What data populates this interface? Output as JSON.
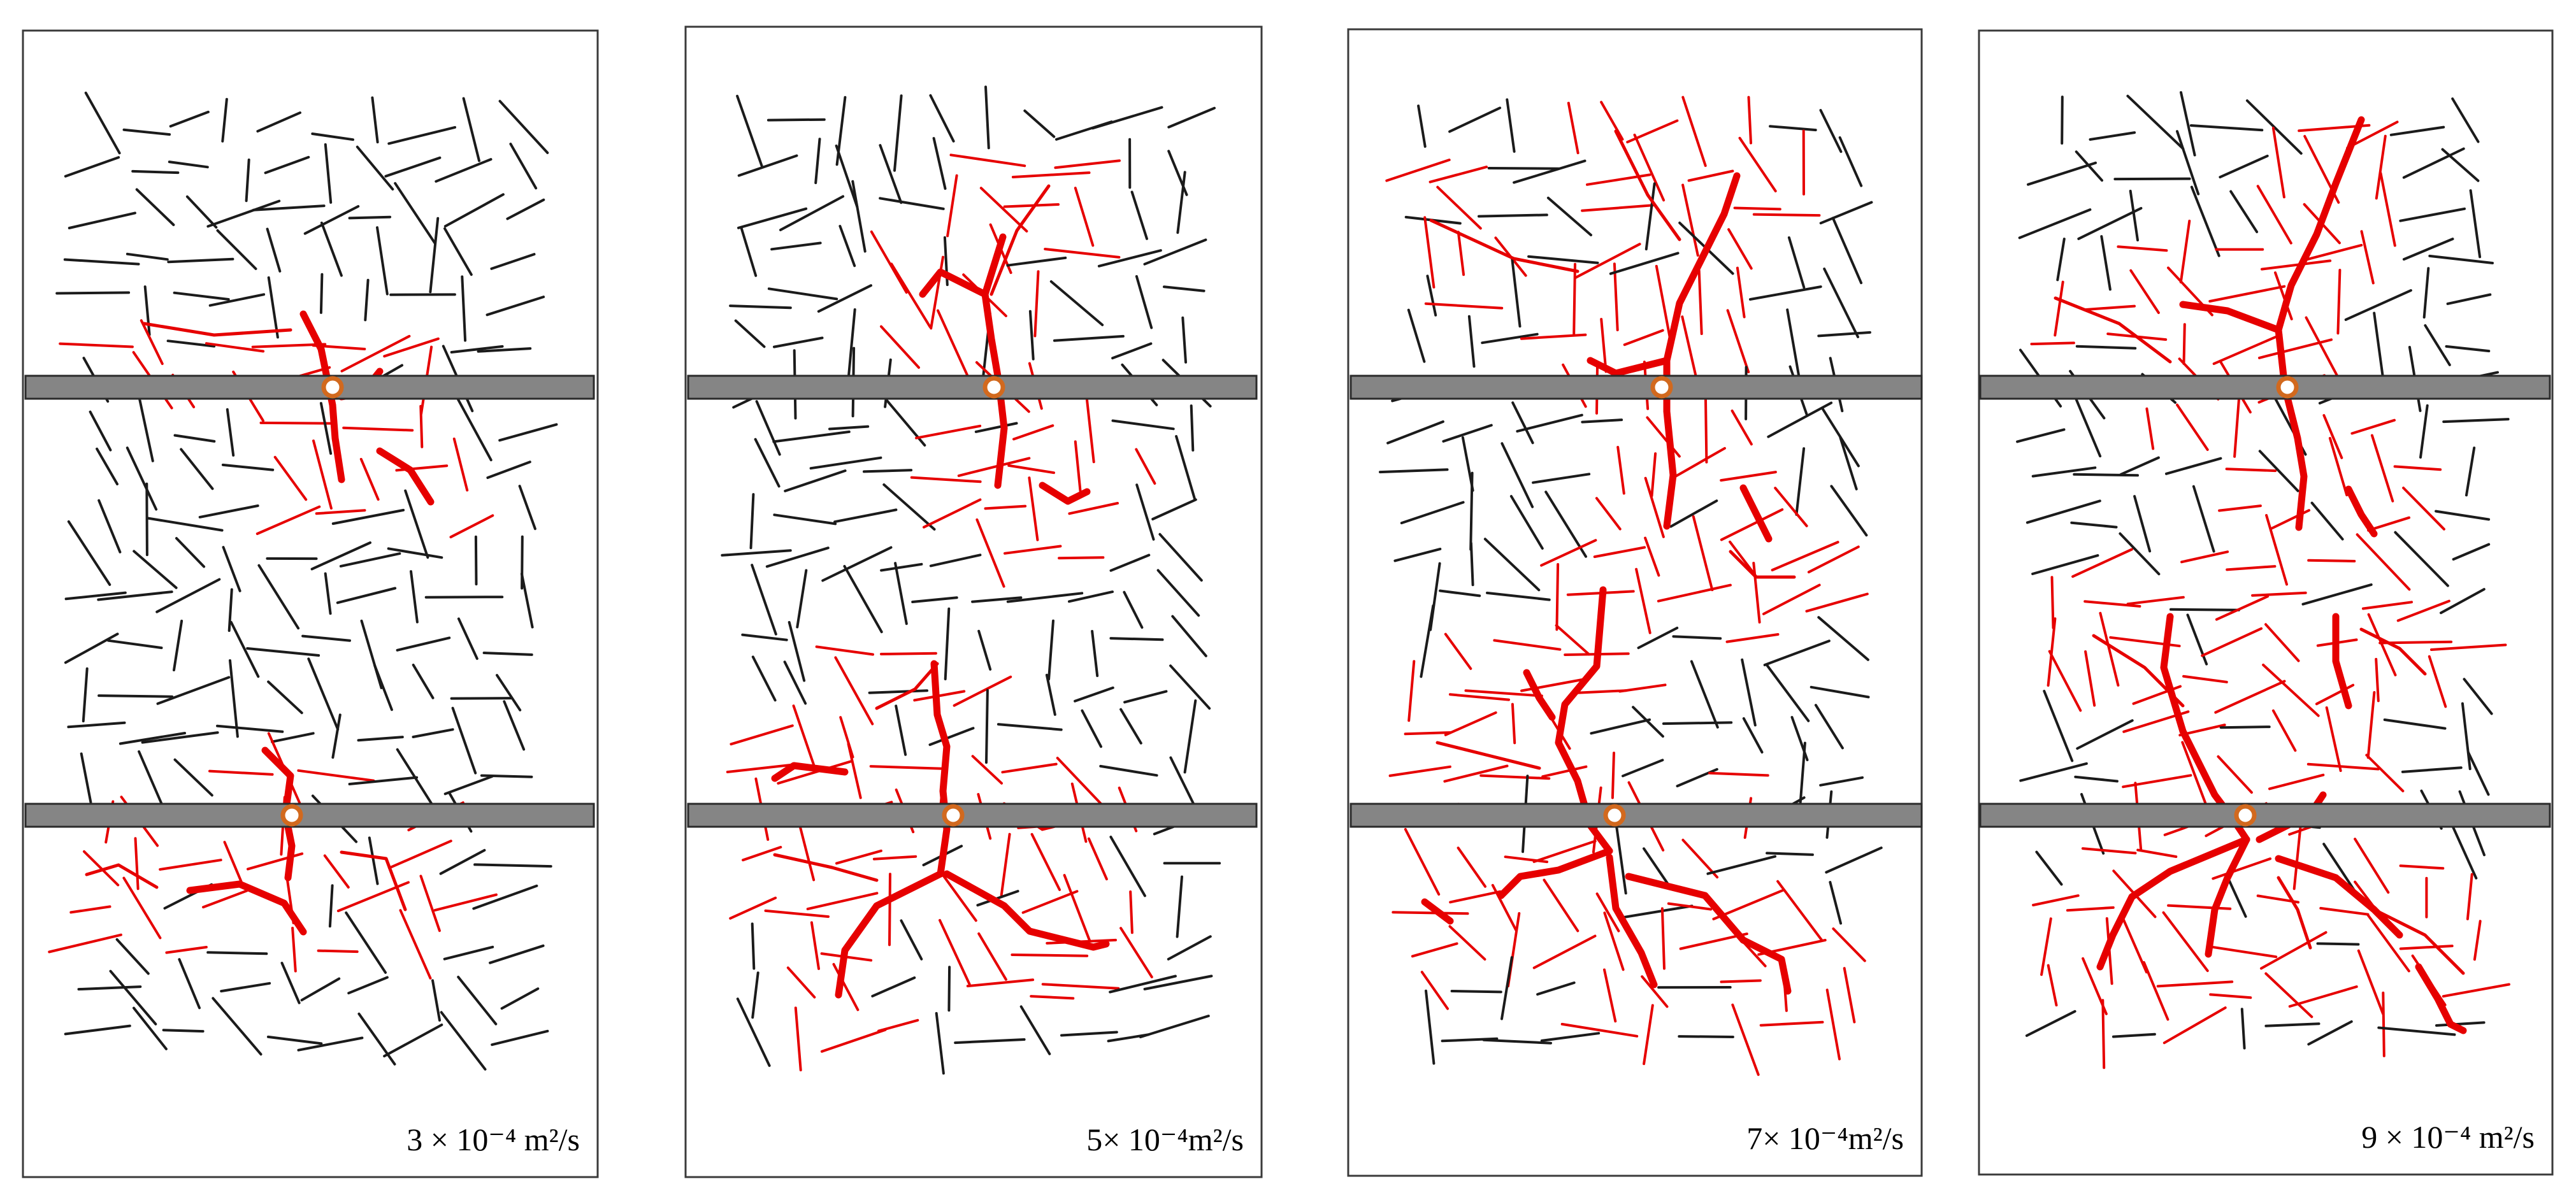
{
  "panels": [
    {
      "id": "p1",
      "label": "3 × 10⁻⁴ m²/s"
    },
    {
      "id": "p2",
      "label": "5× 10⁻⁴m²/s"
    },
    {
      "id": "p3",
      "label": "7× 10⁻⁴m²/s"
    },
    {
      "id": "p4",
      "label": "9 × 10⁻⁴ m²/s"
    }
  ],
  "colors": {
    "natural_fracture": "#1b1b1b",
    "activated_fracture": "#e60000",
    "wellbore": "#858585",
    "perforation_ring": "#d2691e",
    "frame": "#3a3a3a"
  },
  "icons": [
    "wellbore",
    "perforation-point"
  ]
}
